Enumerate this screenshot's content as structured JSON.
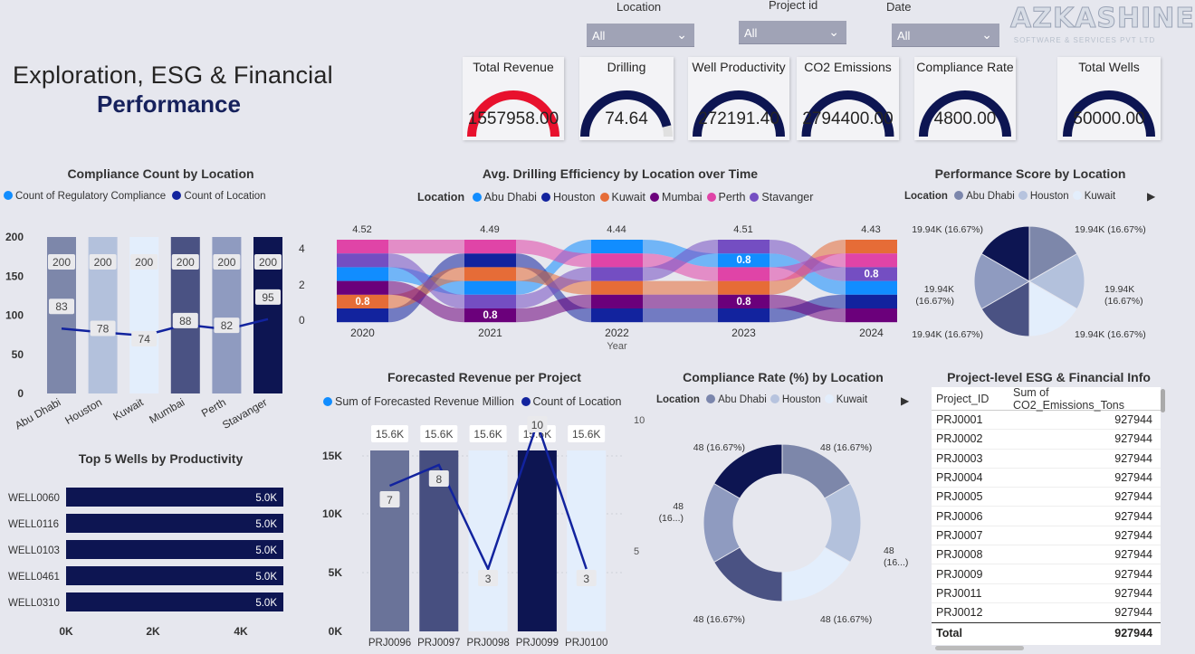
{
  "header": {
    "title": "Exploration, ESG & Financial",
    "subtitle": "Performance"
  },
  "logo": {
    "name": "AZKASHINE",
    "tagline": "SOFTWARE & SERVICES PVT LTD"
  },
  "slicers": [
    {
      "label": "Location",
      "value": "All"
    },
    {
      "label": "Project id",
      "value": "All"
    },
    {
      "label": "Date",
      "value": "All"
    }
  ],
  "kpis": [
    {
      "title": "Total Revenue",
      "value": "1557958.00",
      "fill": 1.0,
      "color": "#e8112d"
    },
    {
      "title": "Drilling",
      "value": "74.64",
      "fill": 0.92,
      "color": "#0d1552"
    },
    {
      "title": "Well Productivity",
      "value": "272191.40",
      "fill": 1.0,
      "color": "#0d1552"
    },
    {
      "title": "CO2 Emissions",
      "value": "2794400.00",
      "fill": 1.0,
      "color": "#0d1552"
    },
    {
      "title": "Compliance Rate",
      "value": "4800.00",
      "fill": 1.0,
      "color": "#0d1552"
    },
    {
      "title": "Total Wells",
      "value": "50000.00",
      "fill": 1.0,
      "color": "#0d1552"
    }
  ],
  "charts": {
    "compliance_count": {
      "title": "Compliance Count by Location",
      "legend": [
        "Count of Regulatory Compliance",
        "Count of Location"
      ],
      "legend_colors": [
        "#118dff",
        "#12239e"
      ]
    },
    "drilling": {
      "title": "Avg. Drilling Efficiency by Location over Time",
      "legend_title": "Location",
      "legend": [
        "Abu Dhabi",
        "Houston",
        "Kuwait",
        "Mumbai",
        "Perth",
        "Stavanger"
      ],
      "legend_colors": [
        "#118dff",
        "#12239e",
        "#e66c37",
        "#6b007b",
        "#e044a7",
        "#744ec2"
      ],
      "xlabel": "Year",
      "yticks": [
        "4",
        "2",
        "0"
      ]
    },
    "performance": {
      "title": "Performance Score by Location",
      "legend_title": "Location",
      "legend": [
        "Abu Dhabi",
        "Houston",
        "Kuwait"
      ],
      "legend_colors": [
        "#7b86ac",
        "#b6c3de",
        "#e3eefc"
      ]
    },
    "top_wells": {
      "title": "Top 5 Wells by Productivity",
      "xticks": [
        "0K",
        "2K",
        "4K"
      ]
    },
    "forecast": {
      "title": "Forecasted Revenue per Project",
      "legend": [
        "Sum of Forecasted Revenue Million",
        "Count of Location"
      ],
      "legend_colors": [
        "#118dff",
        "#12239e"
      ],
      "yticks": [
        "15K",
        "10K",
        "5K",
        "0K"
      ],
      "y2ticks": [
        "10",
        "5"
      ]
    },
    "compliance_rate": {
      "title": "Compliance Rate (%) by Location",
      "legend_title": "Location",
      "legend": [
        "Abu Dhabi",
        "Houston",
        "Kuwait"
      ],
      "legend_colors": [
        "#7b86ac",
        "#b6c3de",
        "#e3eefc"
      ]
    }
  },
  "chart_data": [
    {
      "type": "bar",
      "title": "Compliance Count by Location",
      "categories": [
        "Abu Dhabi",
        "Houston",
        "Kuwait",
        "Mumbai",
        "Perth",
        "Stavanger"
      ],
      "series": [
        {
          "name": "Count of Regulatory Compliance",
          "values": [
            200,
            200,
            200,
            200,
            200,
            200
          ]
        },
        {
          "name": "Count of Location",
          "values": [
            83,
            78,
            74,
            88,
            82,
            95
          ]
        }
      ],
      "ylim": [
        0,
        200
      ],
      "yticks": [
        0,
        50,
        100,
        150,
        200
      ],
      "bar_colors": [
        "#7d87aa",
        "#b3c1dc",
        "#e3eefc",
        "#4a5283",
        "#8f9bc0",
        "#0d1552"
      ]
    },
    {
      "type": "area",
      "title": "Avg. Drilling Efficiency by Location over Time",
      "xlabel": "Year",
      "x": [
        "2020",
        "2021",
        "2022",
        "2023",
        "2024"
      ],
      "totals": [
        "4.52",
        "4.49",
        "4.44",
        "4.51",
        "4.43"
      ],
      "ylim": [
        0,
        4
      ],
      "ribbons": [
        {
          "name": "Abu Dhabi",
          "ranks": [
            3,
            4,
            1,
            2,
            4
          ]
        },
        {
          "name": "Houston",
          "ranks": [
            6,
            2,
            6,
            6,
            5
          ]
        },
        {
          "name": "Kuwait",
          "ranks": [
            5,
            3,
            4,
            4,
            1
          ]
        },
        {
          "name": "Mumbai",
          "ranks": [
            4,
            6,
            5,
            5,
            6
          ]
        },
        {
          "name": "Perth",
          "ranks": [
            1,
            1,
            2,
            3,
            2
          ]
        },
        {
          "name": "Stavanger",
          "ranks": [
            2,
            5,
            3,
            1,
            3
          ]
        }
      ],
      "value_labels": [
        {
          "year": "2020",
          "series": "Kuwait",
          "value": "0.8"
        },
        {
          "year": "2021",
          "series": "Mumbai",
          "value": "0.8"
        },
        {
          "year": "2023",
          "series": "Mumbai",
          "value": "0.8"
        },
        {
          "year": "2023",
          "series": "Abu Dhabi",
          "value": "0.8"
        },
        {
          "year": "2024",
          "series": "Stavanger",
          "value": "0.8"
        }
      ]
    },
    {
      "type": "pie",
      "title": "Performance Score by Location",
      "labels": [
        "Abu Dhabi",
        "Houston",
        "Kuwait",
        "Mumbai",
        "Perth",
        "Stavanger"
      ],
      "values": [
        19.94,
        19.94,
        19.94,
        19.94,
        19.94,
        19.94
      ],
      "slice_labels": [
        "19.94K (16.67%)",
        "19.94K\n(16.67%)",
        "19.94K (16.67%)",
        "19.94K (16.67%)",
        "19.94K\n(16.67%)",
        "19.94K (16.67%)"
      ],
      "colors": [
        "#7d87aa",
        "#b3c1dc",
        "#e3eefc",
        "#4a5283",
        "#8f9bc0",
        "#0d1552"
      ]
    },
    {
      "type": "bar",
      "title": "Top 5 Wells by Productivity",
      "orientation": "horizontal",
      "categories": [
        "WELL0060",
        "WELL0116",
        "WELL0103",
        "WELL0461",
        "WELL0310"
      ],
      "values": [
        5.0,
        5.0,
        5.0,
        5.0,
        5.0
      ],
      "value_labels": [
        "5.0K",
        "5.0K",
        "5.0K",
        "5.0K",
        "5.0K"
      ],
      "xlim": [
        0,
        5
      ]
    },
    {
      "type": "bar",
      "title": "Forecasted Revenue per Project",
      "categories": [
        "PRJ0096",
        "PRJ0097",
        "PRJ0098",
        "PRJ0099",
        "PRJ0100"
      ],
      "series": [
        {
          "name": "Sum of Forecasted Revenue Million",
          "values": [
            15600,
            15600,
            15600,
            15600,
            15600
          ],
          "labels": [
            "15.6K",
            "15.6K",
            "15.6K",
            "15.6K",
            "15.6K"
          ]
        },
        {
          "name": "Count of Location",
          "values": [
            7,
            8,
            3,
            10,
            3
          ]
        }
      ],
      "ylim": [
        0,
        15600
      ],
      "y2lim": [
        0,
        10
      ],
      "bar_colors": [
        "#6a7399",
        "#474f80",
        "#e3eefc",
        "#0d1552",
        "#e3eefc"
      ]
    },
    {
      "type": "pie",
      "title": "Compliance Rate (%) by Location",
      "donut": true,
      "labels": [
        "Abu Dhabi",
        "Houston",
        "Kuwait",
        "Mumbai",
        "Perth",
        "Stavanger"
      ],
      "values": [
        48,
        48,
        48,
        48,
        48,
        48
      ],
      "slice_labels": [
        "48 (16.67%)",
        "48\n(16...)",
        "48 (16.67%)",
        "48 (16.67%)",
        "48\n(16...)",
        "48 (16.67%)"
      ],
      "colors": [
        "#7d87aa",
        "#b3c1dc",
        "#e3eefc",
        "#4a5283",
        "#8f9bc0",
        "#0d1552"
      ]
    }
  ],
  "table": {
    "title": "Project-level ESG & Financial Info",
    "columns": [
      "Project_ID",
      "Sum of CO2_Emissions_Tons"
    ],
    "rows": [
      [
        "PRJ0001",
        "927944"
      ],
      [
        "PRJ0002",
        "927944"
      ],
      [
        "PRJ0003",
        "927944"
      ],
      [
        "PRJ0004",
        "927944"
      ],
      [
        "PRJ0005",
        "927944"
      ],
      [
        "PRJ0006",
        "927944"
      ],
      [
        "PRJ0007",
        "927944"
      ],
      [
        "PRJ0008",
        "927944"
      ],
      [
        "PRJ0009",
        "927944"
      ],
      [
        "PRJ0011",
        "927944"
      ],
      [
        "PRJ0012",
        "927944"
      ]
    ],
    "total_label": "Total",
    "total_value": "927944"
  }
}
